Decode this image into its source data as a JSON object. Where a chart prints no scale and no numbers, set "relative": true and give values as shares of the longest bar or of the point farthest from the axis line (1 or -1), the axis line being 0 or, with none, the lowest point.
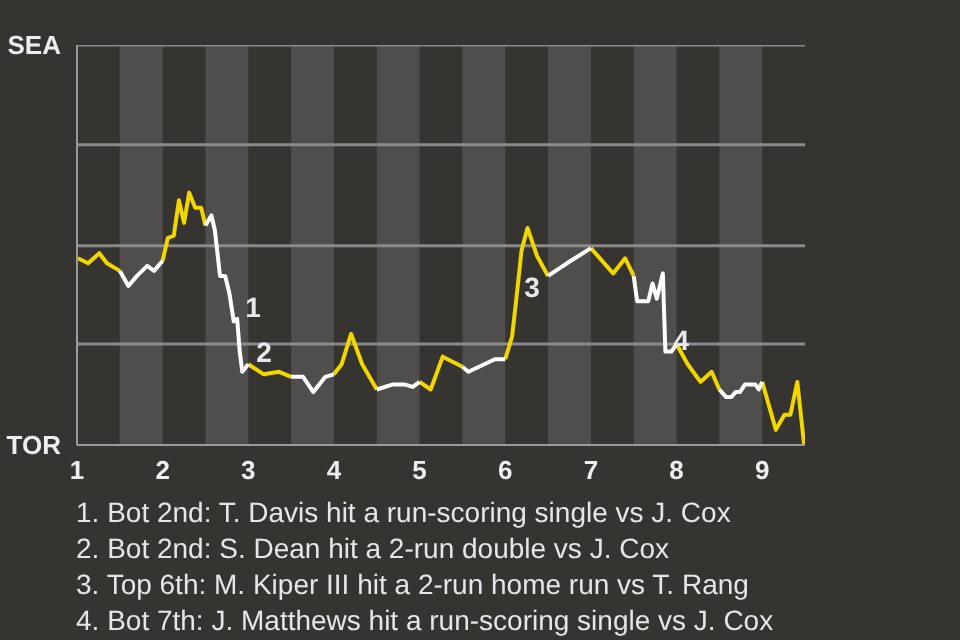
{
  "chart_data": {
    "type": "line",
    "relative": true,
    "x": [
      1.01,
      1.13,
      1.26,
      1.35,
      1.5,
      1.6,
      1.7,
      1.82,
      1.9,
      2.0,
      2.06,
      2.13,
      2.19,
      2.25,
      2.31,
      2.38,
      2.45,
      2.5,
      2.57,
      2.61,
      2.67,
      2.73,
      2.78,
      2.83,
      2.87,
      2.9,
      2.93,
      3.0,
      3.18,
      3.36,
      3.5,
      3.64,
      3.76,
      3.9,
      4.0,
      4.09,
      4.2,
      4.33,
      4.5,
      4.69,
      4.82,
      4.92,
      5.0,
      5.13,
      5.27,
      5.5,
      5.57,
      5.88,
      6.0,
      6.08,
      6.13,
      6.19,
      6.26,
      6.37,
      6.5,
      6.72,
      7.0,
      7.26,
      7.4,
      7.5,
      7.54,
      7.67,
      7.72,
      7.77,
      7.84,
      7.87,
      7.94,
      8.0,
      8.13,
      8.28,
      8.41,
      8.5,
      8.58,
      8.64,
      8.69,
      8.74,
      8.8,
      8.92,
      8.96,
      9.0,
      9.16,
      9.26,
      9.33,
      9.41,
      9.49
    ],
    "series": [
      {
        "color": "#f2d600",
        "values": [
          0.74,
          0.72,
          0.76,
          0.72,
          0.69,
          null,
          null,
          null,
          null,
          0.73,
          0.82,
          0.83,
          0.97,
          0.88,
          1,
          0.94,
          0.94,
          0.87,
          null,
          null,
          null,
          null,
          null,
          null,
          null,
          null,
          null,
          0.32,
          0.28,
          0.29,
          0.27,
          null,
          null,
          null,
          0.28,
          0.32,
          0.44,
          0.32,
          0.22,
          null,
          null,
          null,
          0.25,
          0.22,
          0.35,
          0.31,
          null,
          null,
          0.34,
          0.43,
          0.58,
          0.77,
          0.86,
          0.75,
          0.67,
          null,
          0.78,
          0.68,
          0.74,
          0.67,
          null,
          null,
          null,
          null,
          null,
          null,
          null,
          0.4,
          0.32,
          0.25,
          0.29,
          0.22,
          null,
          null,
          null,
          null,
          null,
          null,
          null,
          0.25,
          0.06,
          0.12,
          0.12,
          0.25,
          0
        ]
      },
      {
        "color": "#ffffff",
        "values": [
          null,
          null,
          null,
          null,
          0.69,
          0.63,
          0.67,
          0.71,
          0.69,
          0.73,
          null,
          null,
          null,
          null,
          null,
          null,
          null,
          0.87,
          0.91,
          0.85,
          0.67,
          0.67,
          0.6,
          0.49,
          0.5,
          0.37,
          0.29,
          0.32,
          null,
          null,
          0.27,
          0.27,
          0.21,
          0.27,
          0.28,
          null,
          null,
          null,
          0.22,
          0.24,
          0.24,
          0.23,
          0.25,
          null,
          null,
          0.31,
          0.29,
          0.34,
          0.34,
          null,
          null,
          null,
          null,
          null,
          0.67,
          0.72,
          0.78,
          null,
          null,
          0.67,
          0.57,
          0.57,
          0.64,
          0.58,
          0.68,
          0.37,
          0.37,
          0.4,
          null,
          null,
          null,
          0.22,
          0.19,
          0.19,
          0.21,
          0.21,
          0.24,
          0.24,
          0.22,
          0.25,
          null,
          null,
          null,
          null,
          null
        ]
      }
    ],
    "xlim": [
      1,
      9.5
    ],
    "xticks": [
      1,
      2,
      3,
      4,
      5,
      6,
      7,
      8,
      9
    ],
    "ref_lines": [
      {
        "axis": "y",
        "value": 0.4,
        "label": null,
        "color": "#8a8a8a"
      },
      {
        "axis": "y",
        "value": 0.79,
        "label": null,
        "color": "#8a8a8a"
      },
      {
        "axis": "y",
        "value": 1.19,
        "label": null,
        "color": "#8a8a8a"
      },
      {
        "axis": "y",
        "value": 1.585,
        "label": null,
        "color": "#8a8a8a"
      }
    ],
    "bands": [
      {
        "axis": "x",
        "from": 1.5,
        "to": 2,
        "label": null,
        "color": "#4f4e4c"
      },
      {
        "axis": "x",
        "from": 2.5,
        "to": 3,
        "label": null,
        "color": "#4f4e4c"
      },
      {
        "axis": "x",
        "from": 3.5,
        "to": 4,
        "label": null,
        "color": "#4f4e4c"
      },
      {
        "axis": "x",
        "from": 4.5,
        "to": 5,
        "label": null,
        "color": "#4f4e4c"
      },
      {
        "axis": "x",
        "from": 5.5,
        "to": 6,
        "label": null,
        "color": "#4f4e4c"
      },
      {
        "axis": "x",
        "from": 6.5,
        "to": 7,
        "label": null,
        "color": "#4f4e4c"
      },
      {
        "axis": "x",
        "from": 7.5,
        "to": 8,
        "label": null,
        "color": "#4f4e4c"
      },
      {
        "axis": "x",
        "from": 8.5,
        "to": 9,
        "label": null,
        "color": "#4f4e4c"
      }
    ],
    "annotations": [
      "SEA",
      "TOR",
      {
        "text": "1",
        "x": 2.87,
        "y": 0.5
      },
      {
        "text": "2",
        "x": 3.0,
        "y": 0.32
      },
      {
        "text": "3",
        "x": 6.13,
        "y": 0.58
      },
      {
        "text": "4",
        "x": 7.87,
        "y": 0.37
      },
      "1. Bot 2nd: T. Davis hit a run-scoring single vs J. Cox",
      "2. Bot 2nd: S. Dean hit a 2-run double vs J. Cox",
      "3. Top 6th: M. Kiper III hit a 2-run home run vs T. Rang",
      "4. Bot 7th: J. Matthews hit a run-scoring single vs J. Cox"
    ]
  }
}
